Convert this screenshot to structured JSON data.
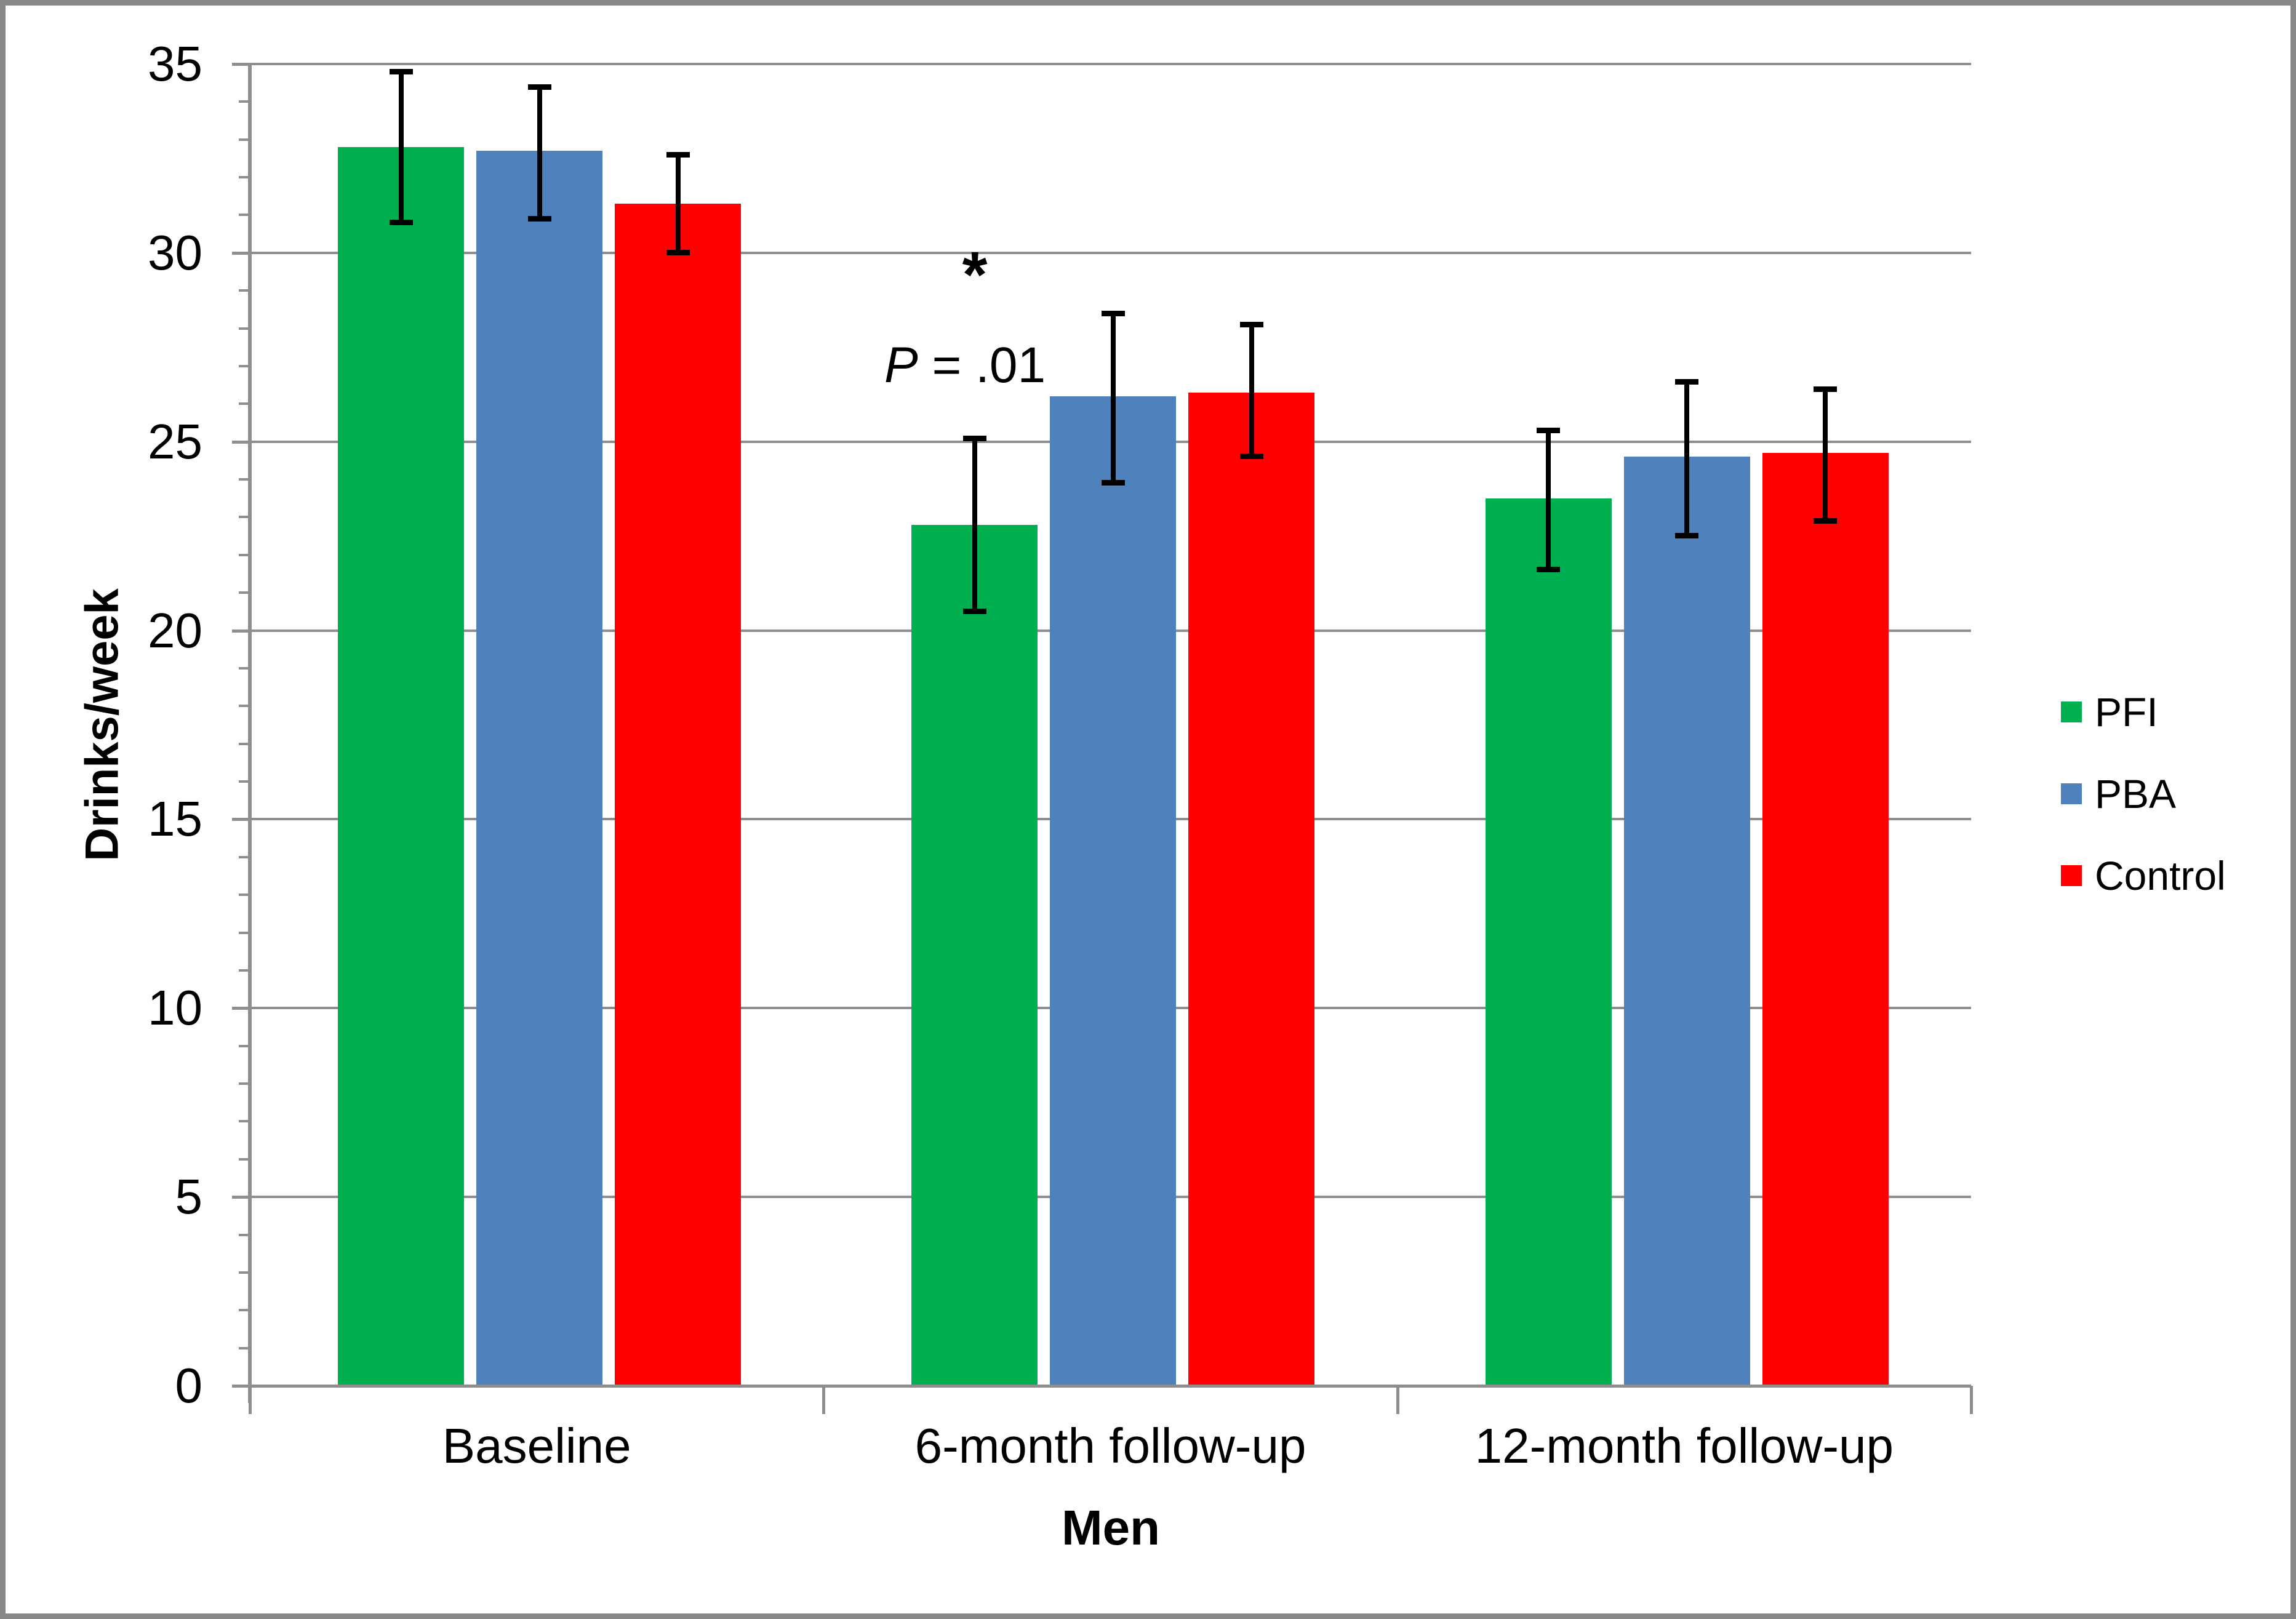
{
  "figure": {
    "background": "#FFFFFF",
    "border_color": "#878787",
    "grid_color": "#8E8E8E",
    "error_bar_color": "#000000",
    "text_color": "#000000"
  },
  "chart_data": {
    "type": "bar",
    "title": "",
    "xlabel": "Men",
    "ylabel": "Drinks/week",
    "categories": [
      "Baseline",
      "6-month follow-up",
      "12-month follow-up"
    ],
    "series": [
      {
        "name": "PFI",
        "color": "#00B050",
        "values": [
          32.8,
          22.8,
          23.5
        ],
        "error_low": [
          30.8,
          20.5,
          21.6
        ],
        "error_high": [
          34.8,
          25.1,
          25.3
        ]
      },
      {
        "name": "PBA",
        "color": "#4F81BD",
        "values": [
          32.7,
          26.2,
          24.6
        ],
        "error_low": [
          30.9,
          23.9,
          22.5
        ],
        "error_high": [
          34.4,
          28.4,
          26.6
        ]
      },
      {
        "name": "Control",
        "color": "#FF0000",
        "values": [
          31.3,
          26.3,
          24.7
        ],
        "error_low": [
          30.0,
          24.6,
          22.9
        ],
        "error_high": [
          32.6,
          28.1,
          26.4
        ]
      }
    ],
    "ylim": [
      0,
      35
    ],
    "yticks": [
      0,
      5,
      10,
      15,
      20,
      25,
      30,
      35
    ],
    "minor_tick_interval": 1,
    "grid": "horizontal-major",
    "legend_position": "right",
    "annotation": {
      "star": "*",
      "p_italic": "P",
      "p_rest": " = .01",
      "target_category": "6-month follow-up",
      "target_series": "PFI"
    }
  }
}
